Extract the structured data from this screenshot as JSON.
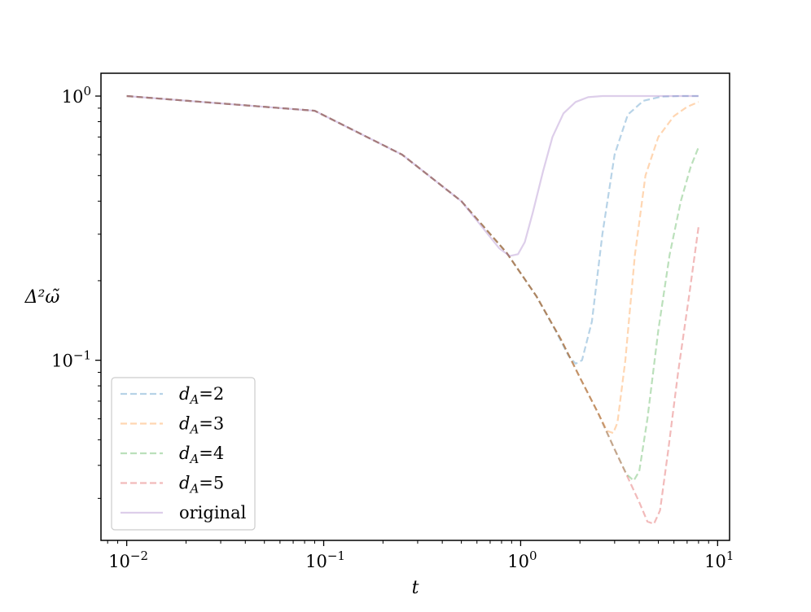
{
  "chart_data": {
    "type": "line",
    "xscale": "log",
    "yscale": "log",
    "xlabel": "t",
    "ylabel": "Δ²ω̃",
    "xlim": [
      0.0074,
      11.5
    ],
    "ylim": [
      0.0208,
      1.22
    ],
    "x_ticks": [
      {
        "value": 0.01,
        "base": "10",
        "exp": "−2"
      },
      {
        "value": 0.1,
        "base": "10",
        "exp": "−1"
      },
      {
        "value": 1,
        "base": "10",
        "exp": "0"
      },
      {
        "value": 10,
        "base": "10",
        "exp": "1"
      }
    ],
    "y_ticks": [
      {
        "value": 1,
        "base": "10",
        "exp": "0"
      },
      {
        "value": 0.1,
        "base": "10",
        "exp": "−1"
      }
    ],
    "grid": false,
    "legend_position": "lower-left",
    "series": [
      {
        "name": "d_A=2",
        "legend_sym": "d",
        "legend_sub": "A",
        "legend_val": "=2",
        "color": "#1f77b4",
        "dash": true,
        "x": [
          0.01,
          0.09,
          0.25,
          0.5,
          0.85,
          1.2,
          1.5,
          1.75,
          1.9,
          2.05,
          2.3,
          2.6,
          3.0,
          3.5,
          4.2,
          5.2,
          6.5,
          8.0
        ],
        "y": [
          1.0,
          0.88,
          0.6,
          0.4,
          0.255,
          0.175,
          0.13,
          0.104,
          0.097,
          0.1,
          0.14,
          0.3,
          0.6,
          0.85,
          0.96,
          0.995,
          1.0,
          1.0
        ]
      },
      {
        "name": "d_A=3",
        "legend_sym": "d",
        "legend_sub": "A",
        "legend_val": "=3",
        "color": "#ff7f0e",
        "dash": true,
        "x": [
          0.01,
          0.09,
          0.25,
          0.5,
          0.85,
          1.2,
          1.6,
          2.0,
          2.4,
          2.75,
          2.95,
          3.1,
          3.4,
          3.8,
          4.3,
          5.0,
          6.0,
          7.0,
          8.0
        ],
        "y": [
          1.0,
          0.88,
          0.6,
          0.4,
          0.255,
          0.175,
          0.12,
          0.086,
          0.066,
          0.054,
          0.053,
          0.058,
          0.1,
          0.25,
          0.5,
          0.7,
          0.84,
          0.91,
          0.95
        ]
      },
      {
        "name": "d_A=4",
        "legend_sym": "d",
        "legend_sub": "A",
        "legend_val": "=4",
        "color": "#2ca02c",
        "dash": true,
        "x": [
          0.01,
          0.09,
          0.25,
          0.5,
          0.85,
          1.2,
          1.6,
          2.0,
          2.5,
          3.0,
          3.45,
          3.75,
          4.0,
          4.4,
          5.0,
          5.7,
          6.5,
          7.3,
          8.0
        ],
        "y": [
          1.0,
          0.88,
          0.6,
          0.4,
          0.255,
          0.175,
          0.12,
          0.086,
          0.062,
          0.046,
          0.037,
          0.035,
          0.038,
          0.06,
          0.13,
          0.25,
          0.4,
          0.54,
          0.64
        ]
      },
      {
        "name": "d_A=5",
        "legend_sym": "d",
        "legend_sub": "A",
        "legend_val": "=5",
        "color": "#d62728",
        "dash": true,
        "x": [
          0.01,
          0.09,
          0.25,
          0.5,
          0.85,
          1.2,
          1.6,
          2.0,
          2.5,
          3.0,
          3.5,
          4.0,
          4.4,
          4.75,
          5.1,
          5.6,
          6.3,
          7.2,
          8.0
        ],
        "y": [
          1.0,
          0.88,
          0.6,
          0.4,
          0.255,
          0.175,
          0.12,
          0.086,
          0.062,
          0.046,
          0.036,
          0.029,
          0.0245,
          0.024,
          0.027,
          0.045,
          0.09,
          0.18,
          0.32
        ]
      },
      {
        "name": "original",
        "legend_sym": "",
        "legend_sub": "",
        "legend_val": "original",
        "color": "#9467bd",
        "dash": false,
        "x": [
          0.01,
          0.09,
          0.25,
          0.5,
          0.78,
          0.88,
          0.97,
          1.05,
          1.15,
          1.3,
          1.45,
          1.65,
          1.9,
          2.2,
          2.6,
          3.2,
          4.5,
          8.0
        ],
        "y": [
          1.0,
          0.88,
          0.6,
          0.4,
          0.265,
          0.248,
          0.252,
          0.28,
          0.36,
          0.52,
          0.7,
          0.86,
          0.95,
          0.99,
          1.0,
          1.0,
          1.0,
          1.0
        ]
      }
    ]
  }
}
